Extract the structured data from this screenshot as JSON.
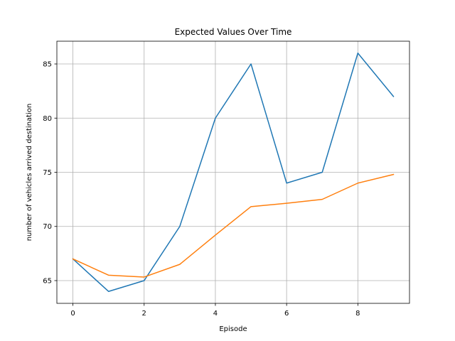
{
  "chart_data": {
    "type": "line",
    "title": "Expected Values Over Time",
    "xlabel": "Episode",
    "ylabel": "number of vehicles arrived destination",
    "x": [
      0,
      1,
      2,
      3,
      4,
      5,
      6,
      7,
      8,
      9
    ],
    "series": [
      {
        "values": [
          67,
          64,
          65,
          70,
          80,
          85,
          74,
          75,
          86,
          82
        ],
        "color": "#1f77b4"
      },
      {
        "values": [
          67,
          65.5,
          65.33,
          66.5,
          69.2,
          71.83,
          72.14,
          72.5,
          74,
          74.8
        ],
        "color": "#ff7f0e"
      }
    ],
    "xticks": [
      0,
      2,
      4,
      6,
      8
    ],
    "yticks": [
      65,
      70,
      75,
      80,
      85
    ],
    "xlim": [
      -0.45,
      9.45
    ],
    "ylim": [
      62.9,
      87.1
    ],
    "grid": true,
    "legend": false
  }
}
